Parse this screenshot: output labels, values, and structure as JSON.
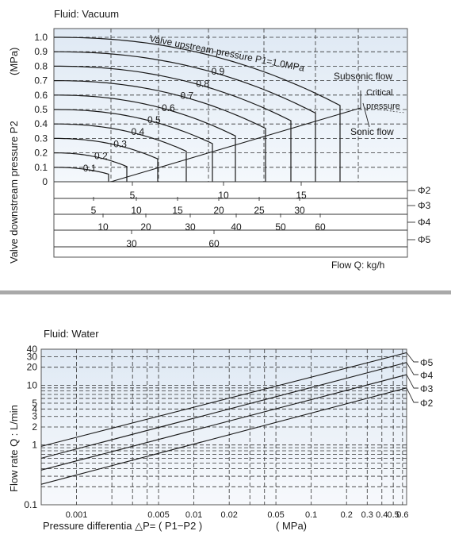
{
  "vacuum": {
    "fluid_label": "Fluid: Vacuum",
    "ylabel_main": "Valve downstream pressure  P2",
    "ylabel_unit": "(MPa)",
    "y_ticks": [
      "1.0",
      "0.9",
      "0.8",
      "0.7",
      "0.6",
      "0.5",
      "0.4",
      "0.3",
      "0.2",
      "0.1",
      "0"
    ],
    "curve_labels": [
      "0.1",
      "0.2",
      "0.3",
      "0.4",
      "0.5",
      "0.6",
      "0.7",
      "0.8",
      "0.9"
    ],
    "p1_label": "Valve upstream pressure P1=1.0MPa",
    "subsonic": "Subsonic flow",
    "critical_1": "Critical",
    "critical_2": "pressure",
    "sonic": "Sonic flow",
    "flow_label": "Flow Q: kg/h",
    "scale_rows": [
      {
        "name": "Φ2",
        "ticks": [
          "5",
          "10",
          "15"
        ]
      },
      {
        "name": "Φ3",
        "ticks": [
          "5",
          "10",
          "15",
          "20",
          "25",
          "30"
        ]
      },
      {
        "name": "Φ4",
        "ticks": [
          "10",
          "20",
          "30",
          "40",
          "50",
          "60"
        ]
      },
      {
        "name": "Φ5",
        "ticks": [
          "30",
          "60"
        ]
      }
    ]
  },
  "water": {
    "fluid_label": "Fluid: Water",
    "ylabel": "Flow rate Q : L/min",
    "xlabel_main": "Pressure differentia  △P= ( P1−P2 )",
    "xlabel_unit": "( MPa)",
    "y_ticks": [
      "40",
      "30",
      "20",
      "10",
      "5",
      "4",
      "3",
      "2",
      "1",
      "0.1"
    ],
    "x_ticks": [
      "0.001",
      "0.005",
      "0.01",
      "0.02",
      "0.05",
      "0.1",
      "0.2",
      "0.3",
      "0.4",
      "0.5",
      "0.6"
    ],
    "series_labels": [
      "Φ5",
      "Φ4",
      "Φ3",
      "Φ2"
    ]
  },
  "chart_data": [
    {
      "type": "line",
      "title": "Fluid: Vacuum",
      "ylabel": "Valve downstream pressure P2 (MPa)",
      "xlabel": "Flow Q: kg/h",
      "ylim": [
        0,
        1.0
      ],
      "series": [
        {
          "name": "0.1",
          "p1": 0.1
        },
        {
          "name": "0.2",
          "p1": 0.2
        },
        {
          "name": "0.3",
          "p1": 0.3
        },
        {
          "name": "0.4",
          "p1": 0.4
        },
        {
          "name": "0.5",
          "p1": 0.5
        },
        {
          "name": "0.6",
          "p1": 0.6
        },
        {
          "name": "0.7",
          "p1": 0.7
        },
        {
          "name": "0.8",
          "p1": 0.8
        },
        {
          "name": "0.9",
          "p1": 0.9
        },
        {
          "name": "Valve upstream pressure P1=1.0MPa",
          "p1": 1.0
        }
      ],
      "flow_scales": [
        {
          "name": "Φ2",
          "ticks": [
            5,
            10,
            15
          ]
        },
        {
          "name": "Φ3",
          "ticks": [
            5,
            10,
            15,
            20,
            25,
            30
          ]
        },
        {
          "name": "Φ4",
          "ticks": [
            10,
            20,
            30,
            40,
            50,
            60
          ]
        },
        {
          "name": "Φ5",
          "ticks": [
            30,
            60
          ]
        }
      ]
    },
    {
      "type": "line",
      "title": "Fluid: Water",
      "ylabel": "Flow rate Q : L/min",
      "xlabel": "Pressure differentia △P= ( P1−P2 ) ( MPa)",
      "x_scale": "log",
      "y_scale": "log",
      "xlim": [
        0.0005,
        0.65
      ],
      "ylim": [
        0.1,
        40
      ],
      "series": [
        {
          "name": "Φ5",
          "x": [
            0.0005,
            0.65
          ],
          "y": [
            0.95,
            35
          ]
        },
        {
          "name": "Φ4",
          "x": [
            0.0005,
            0.65
          ],
          "y": [
            0.6,
            24
          ]
        },
        {
          "name": "Φ3",
          "x": [
            0.0005,
            0.65
          ],
          "y": [
            0.38,
            15
          ]
        },
        {
          "name": "Φ2",
          "x": [
            0.0005,
            0.65
          ],
          "y": [
            0.22,
            9
          ]
        }
      ]
    }
  ]
}
